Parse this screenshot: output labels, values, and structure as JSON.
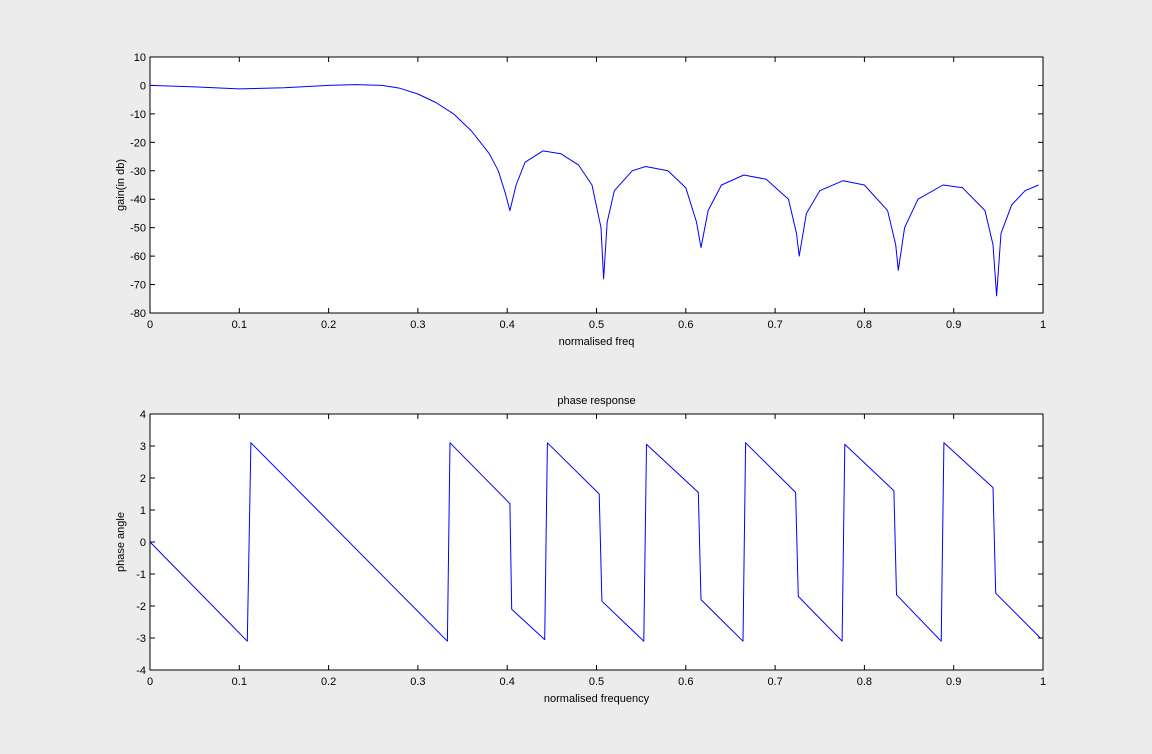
{
  "chart_data": [
    {
      "type": "line",
      "title": "",
      "xlabel": "normalised freq",
      "ylabel": "gain(in db)",
      "xlim": [
        0,
        1
      ],
      "ylim": [
        -80,
        10
      ],
      "xticks": [
        0,
        0.1,
        0.2,
        0.3,
        0.4,
        0.5,
        0.6,
        0.7,
        0.8,
        0.9,
        1
      ],
      "yticks": [
        10,
        0,
        -10,
        -20,
        -30,
        -40,
        -50,
        -60,
        -70,
        -80
      ],
      "line_color": "#0000ff",
      "grid": false,
      "series": [
        {
          "x": [
            0,
            0.05,
            0.1,
            0.15,
            0.2,
            0.23,
            0.26,
            0.28,
            0.3,
            0.32,
            0.34,
            0.36,
            0.38,
            0.39,
            0.398,
            0.403,
            0.41,
            0.42,
            0.44,
            0.46,
            0.48,
            0.495,
            0.505,
            0.508,
            0.512,
            0.52,
            0.54,
            0.555,
            0.58,
            0.6,
            0.612,
            0.617,
            0.625,
            0.64,
            0.665,
            0.69,
            0.715,
            0.724,
            0.727,
            0.735,
            0.75,
            0.776,
            0.8,
            0.826,
            0.835,
            0.838,
            0.845,
            0.86,
            0.888,
            0.91,
            0.935,
            0.944,
            0.948,
            0.953,
            0.965,
            0.98,
            0.995
          ],
          "y": [
            0,
            -0.5,
            -1.2,
            -0.8,
            0,
            0.3,
            0,
            -1,
            -3,
            -6,
            -10,
            -16,
            -24,
            -30,
            -38,
            -44,
            -35,
            -27,
            -23,
            -24,
            -28,
            -35,
            -50,
            -68,
            -48,
            -37,
            -30,
            -28.5,
            -30,
            -36,
            -48,
            -57,
            -44,
            -35,
            -31.5,
            -33,
            -40,
            -52,
            -60,
            -45,
            -37,
            -33.5,
            -35,
            -44,
            -56,
            -65,
            -50,
            -40,
            -35,
            -36,
            -44,
            -56,
            -74,
            -52,
            -42,
            -37,
            -35
          ]
        }
      ]
    },
    {
      "type": "line",
      "title": "phase response",
      "xlabel": "normalised frequency",
      "ylabel": "phase angle",
      "xlim": [
        0,
        1
      ],
      "ylim": [
        -4,
        4
      ],
      "xticks": [
        0,
        0.1,
        0.2,
        0.3,
        0.4,
        0.5,
        0.6,
        0.7,
        0.8,
        0.9,
        1
      ],
      "yticks": [
        4,
        3,
        2,
        1,
        0,
        -1,
        -2,
        -3,
        -4
      ],
      "line_color": "#0000ff",
      "grid": false,
      "series": [
        {
          "x": [
            0,
            0.109,
            0.113,
            0.333,
            0.336,
            0.403,
            0.405,
            0.442,
            0.445,
            0.503,
            0.506,
            0.553,
            0.556,
            0.614,
            0.617,
            0.664,
            0.667,
            0.723,
            0.726,
            0.775,
            0.778,
            0.833,
            0.836,
            0.886,
            0.889,
            0.944,
            0.947,
            0.997
          ],
          "y": [
            0,
            -3.1,
            3.1,
            -3.1,
            3.1,
            1.2,
            -2.1,
            -3.05,
            3.1,
            1.5,
            -1.85,
            -3.1,
            3.05,
            1.55,
            -1.8,
            -3.1,
            3.1,
            1.55,
            -1.7,
            -3.1,
            3.05,
            1.6,
            -1.65,
            -3.1,
            3.1,
            1.7,
            -1.6,
            -3.0
          ]
        }
      ]
    }
  ]
}
